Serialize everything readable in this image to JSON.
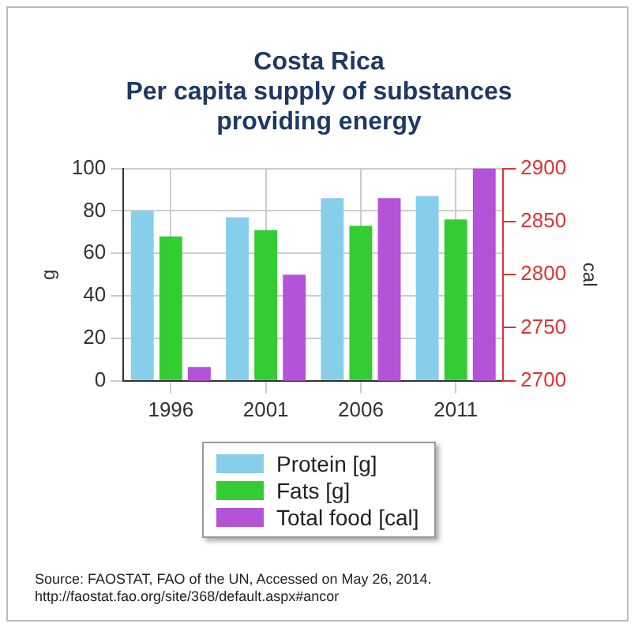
{
  "chart_data": {
    "type": "bar",
    "title": "Costa Rica",
    "subtitle": "Per capita supply of substances providing energy",
    "categories": [
      "1996",
      "2001",
      "2006",
      "2011"
    ],
    "series": [
      {
        "name": "Protein [g]",
        "color": "#87ceeb",
        "values": [
          80,
          77,
          86,
          87
        ]
      },
      {
        "name": "Fats [g]",
        "color": "#33cc33",
        "values": [
          68,
          71,
          73,
          76
        ]
      },
      {
        "name": "Total food [cal]",
        "color": "#b452d8",
        "values": [
          2713,
          2800,
          2872,
          2900
        ],
        "axis": "y2"
      }
    ],
    "ylabel": "g",
    "y2label": "cal",
    "ylim": [
      0,
      100
    ],
    "yticks": [
      0,
      20,
      40,
      60,
      80,
      100
    ],
    "y2lim": [
      2700,
      2900
    ],
    "y2ticks": [
      2700,
      2750,
      2800,
      2850,
      2900
    ],
    "grid": true,
    "legend": "bottom",
    "annotations": [
      "Source: FAOSTAT, FAO of the UN, Accessed on May 26, 2014.",
      "http://faostat.fao.org/site/368/default.aspx#ancor"
    ]
  }
}
